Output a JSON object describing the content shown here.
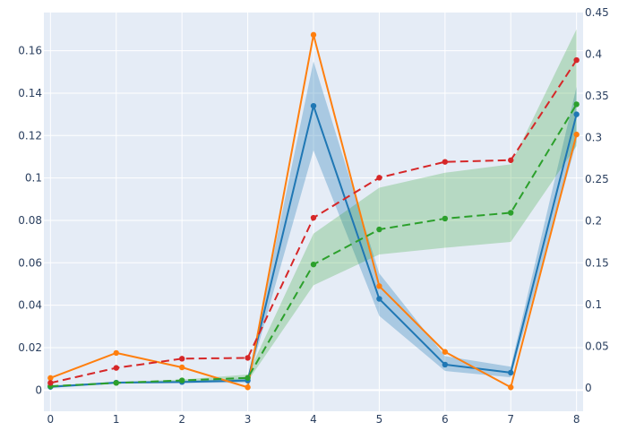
{
  "chart_data": {
    "type": "line",
    "x": [
      0,
      1,
      2,
      3,
      4,
      5,
      6,
      7,
      8
    ],
    "xlim": [
      -0.1,
      8.1
    ],
    "ylim_left": [
      -0.01,
      0.178
    ],
    "ylim_right": [
      -0.028,
      0.45
    ],
    "x_ticks": [
      "0",
      "1",
      "2",
      "3",
      "4",
      "5",
      "6",
      "7",
      "8"
    ],
    "y_left_ticks": [
      {
        "value": 0,
        "label": "0"
      },
      {
        "value": 0.02,
        "label": "0.02"
      },
      {
        "value": 0.04,
        "label": "0.04"
      },
      {
        "value": 0.06,
        "label": "0.06"
      },
      {
        "value": 0.08,
        "label": "0.08"
      },
      {
        "value": 0.1,
        "label": "0.1"
      },
      {
        "value": 0.12,
        "label": "0.12"
      },
      {
        "value": 0.14,
        "label": "0.14"
      },
      {
        "value": 0.16,
        "label": "0.16"
      }
    ],
    "y_right_ticks": [
      {
        "value": 0,
        "label": "0"
      },
      {
        "value": 0.05,
        "label": "0.05"
      },
      {
        "value": 0.1,
        "label": "0.1"
      },
      {
        "value": 0.15,
        "label": "0.15"
      },
      {
        "value": 0.2,
        "label": "0.2"
      },
      {
        "value": 0.25,
        "label": "0.25"
      },
      {
        "value": 0.3,
        "label": "0.3"
      },
      {
        "value": 0.35,
        "label": "0.35"
      },
      {
        "value": 0.4,
        "label": "0.4"
      },
      {
        "value": 0.45,
        "label": "0.45"
      }
    ],
    "grid": true,
    "legend": "none",
    "background_color": "#e5ecf6",
    "grid_color": "#ffffff",
    "series": [
      {
        "axis": "left",
        "color": "#1f77b4",
        "dash": "solid",
        "values": [
          0.0015,
          0.0035,
          0.0038,
          0.0045,
          0.134,
          0.043,
          0.012,
          0.0082,
          0.13
        ],
        "band": {
          "lower": [
            0.001,
            0.003,
            0.0033,
            0.0035,
            0.113,
            0.035,
            0.009,
            0.006,
            0.117
          ],
          "upper": [
            0.002,
            0.004,
            0.0043,
            0.0055,
            0.155,
            0.055,
            0.016,
            0.011,
            0.143
          ],
          "color": "#1f77b4",
          "opacity": 0.3
        }
      },
      {
        "axis": "left",
        "color": "#ff7f0e",
        "dash": "solid",
        "values": [
          0.0057,
          0.0175,
          0.0107,
          0.0013,
          0.1675,
          0.049,
          0.018,
          0.0013,
          0.1205
        ]
      },
      {
        "axis": "right",
        "color": "#2ca02c",
        "dash": "dash",
        "values": [
          0.002,
          0.006,
          0.009,
          0.012,
          0.148,
          0.19,
          0.203,
          0.21,
          0.34
        ],
        "band": {
          "lower": [
            0.001,
            0.005,
            0.008,
            0.008,
            0.123,
            0.16,
            0.168,
            0.175,
            0.29
          ],
          "upper": [
            0.003,
            0.007,
            0.01,
            0.016,
            0.185,
            0.24,
            0.258,
            0.268,
            0.43
          ],
          "color": "#2ca02c",
          "opacity": 0.25
        }
      },
      {
        "axis": "right",
        "color": "#d62728",
        "dash": "dash",
        "values": [
          0.006,
          0.024,
          0.035,
          0.036,
          0.204,
          0.252,
          0.271,
          0.273,
          0.393
        ]
      }
    ]
  }
}
